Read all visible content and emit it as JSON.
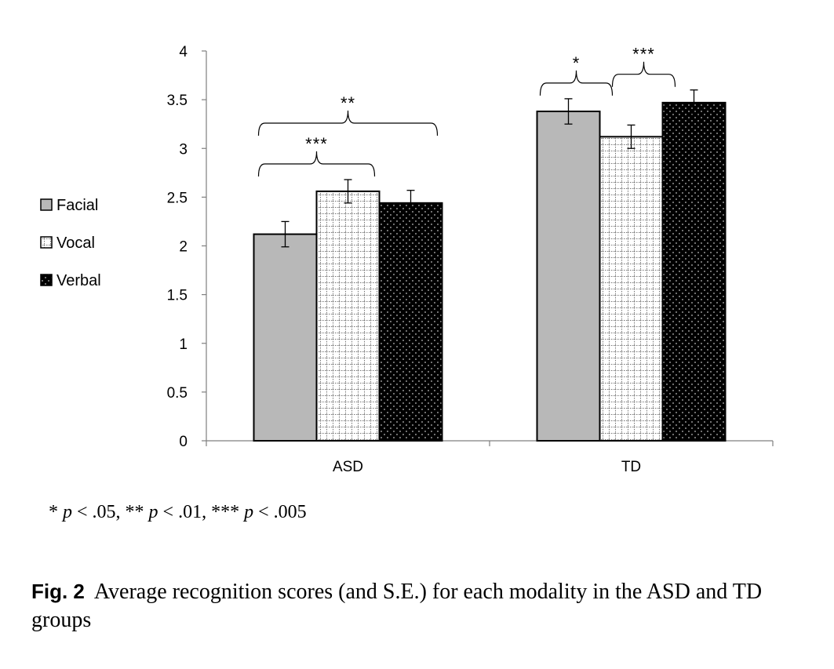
{
  "chart_data": {
    "type": "bar",
    "categories": [
      "ASD",
      "TD"
    ],
    "series": [
      {
        "name": "Facial",
        "values": [
          2.12,
          3.38
        ],
        "errors": [
          0.13,
          0.13
        ]
      },
      {
        "name": "Vocal",
        "values": [
          2.56,
          3.12
        ],
        "errors": [
          0.12,
          0.12
        ]
      },
      {
        "name": "Verbal",
        "values": [
          2.44,
          3.47
        ],
        "errors": [
          0.13,
          0.13
        ]
      }
    ],
    "ylim": [
      0,
      4
    ],
    "yticks": [
      "0",
      "0.5",
      "1",
      "1.5",
      "2",
      "2.5",
      "3",
      "3.5",
      "4"
    ],
    "legend_position": "left",
    "grid": false,
    "series_colors": [
      "#b8b8b8",
      "#ffffff",
      "#000000"
    ],
    "significance": [
      {
        "category": "ASD",
        "from_series": 0,
        "to_series": 1,
        "label": "***"
      },
      {
        "category": "ASD",
        "from_series": 0,
        "to_series": 2,
        "label": "**"
      },
      {
        "category": "TD",
        "from_series": 0,
        "to_series": 1,
        "label": "*"
      },
      {
        "category": "TD",
        "from_series": 1,
        "to_series": 2,
        "label": "***"
      }
    ]
  },
  "footnote": {
    "sig1_stars": "*",
    "sig1_p": "p",
    "sig1_rest": " < .05,",
    "sig2_stars": " **",
    "sig2_p": "p",
    "sig2_rest": " < .01,",
    "sig3_stars": " ***",
    "sig3_p": "p",
    "sig3_rest": " < .005"
  },
  "caption": {
    "label": "Fig. 2",
    "text": "Average recognition scores (and S.E.) for each modality in the ASD and TD groups"
  }
}
